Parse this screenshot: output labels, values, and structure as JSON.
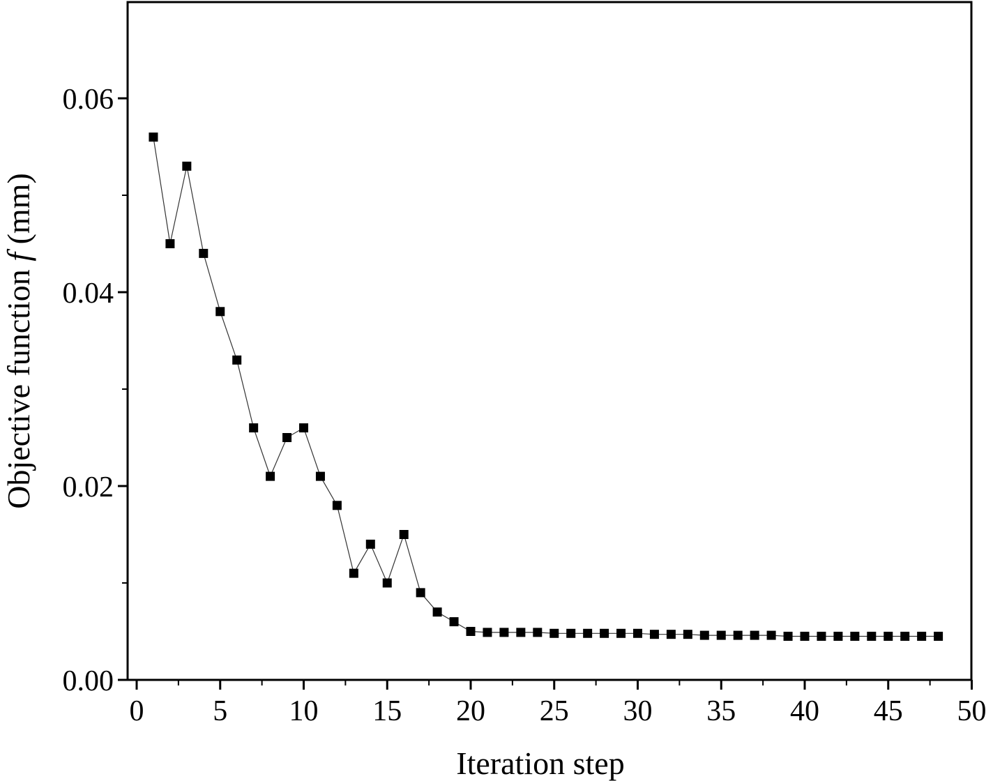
{
  "chart_data": {
    "type": "line",
    "xlabel": "Iteration step",
    "ylabel_prefix": "Objective function ",
    "ylabel_var": "f",
    "ylabel_suffix": " (mm)",
    "xlim": [
      -0.5,
      50
    ],
    "ylim": [
      0,
      0.07
    ],
    "xticks": [
      0,
      5,
      10,
      15,
      20,
      25,
      30,
      35,
      40,
      45,
      50
    ],
    "xtick_labels": [
      "0",
      "5",
      "10",
      "15",
      "20",
      "25",
      "30",
      "35",
      "40",
      "45",
      "50"
    ],
    "yticks": [
      0,
      0.02,
      0.04,
      0.06
    ],
    "ytick_labels": [
      "0.00",
      "0.02",
      "0.04",
      "0.06"
    ],
    "yminor_ticks": [
      0.01,
      0.03,
      0.05
    ],
    "grid": false,
    "marker": "square",
    "color": "#000000",
    "series": [
      {
        "x": [
          1,
          2,
          3,
          4,
          5,
          6,
          7,
          8,
          9,
          10,
          11,
          12,
          13,
          14,
          15,
          16,
          17,
          18,
          19,
          20,
          21,
          22,
          23,
          24,
          25,
          26,
          27,
          28,
          29,
          30,
          31,
          32,
          33,
          34,
          35,
          36,
          37,
          38,
          39,
          40,
          41,
          42,
          43,
          44,
          45,
          46,
          47,
          48
        ],
        "y": [
          0.056,
          0.045,
          0.053,
          0.044,
          0.038,
          0.033,
          0.026,
          0.021,
          0.025,
          0.026,
          0.021,
          0.018,
          0.011,
          0.014,
          0.01,
          0.015,
          0.009,
          0.007,
          0.006,
          0.005,
          0.0049,
          0.0049,
          0.0049,
          0.0049,
          0.0048,
          0.0048,
          0.0048,
          0.0048,
          0.0048,
          0.0048,
          0.0047,
          0.0047,
          0.0047,
          0.0046,
          0.0046,
          0.0046,
          0.0046,
          0.0046,
          0.0045,
          0.0045,
          0.0045,
          0.0045,
          0.0045,
          0.0045,
          0.0045,
          0.0045,
          0.0045,
          0.0045
        ]
      }
    ]
  }
}
